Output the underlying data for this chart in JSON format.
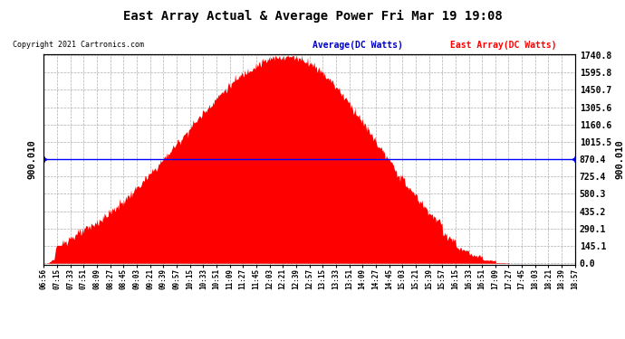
{
  "title": "East Array Actual & Average Power Fri Mar 19 19:08",
  "copyright": "Copyright 2021 Cartronics.com",
  "legend_avg": "Average(DC Watts)",
  "legend_east": "East Array(DC Watts)",
  "ylabel_both": "900.010",
  "yticks": [
    0.0,
    145.1,
    290.1,
    435.2,
    580.3,
    725.4,
    870.4,
    1015.5,
    1160.6,
    1305.6,
    1450.7,
    1595.8,
    1740.8
  ],
  "ymax": 1740.8,
  "ymin": 0.0,
  "average_value": 870.4,
  "avg_line_color": "#0000ff",
  "area_color": "#ff0000",
  "grid_color": "#999999",
  "title_color": "#000000",
  "copyright_color": "#000000",
  "legend_avg_color": "#0000cc",
  "legend_east_color": "#ff0000",
  "background_color": "#ffffff",
  "xtick_labels": [
    "06:56",
    "07:15",
    "07:33",
    "07:51",
    "08:09",
    "08:27",
    "08:45",
    "09:03",
    "09:21",
    "09:39",
    "09:57",
    "10:15",
    "10:33",
    "10:51",
    "11:09",
    "11:27",
    "11:45",
    "12:03",
    "12:21",
    "12:39",
    "12:57",
    "13:15",
    "13:33",
    "13:51",
    "14:09",
    "14:27",
    "14:45",
    "15:03",
    "15:21",
    "15:39",
    "15:57",
    "16:15",
    "16:33",
    "16:51",
    "17:09",
    "17:27",
    "17:45",
    "18:03",
    "18:21",
    "18:39",
    "18:57"
  ],
  "num_points": 720
}
